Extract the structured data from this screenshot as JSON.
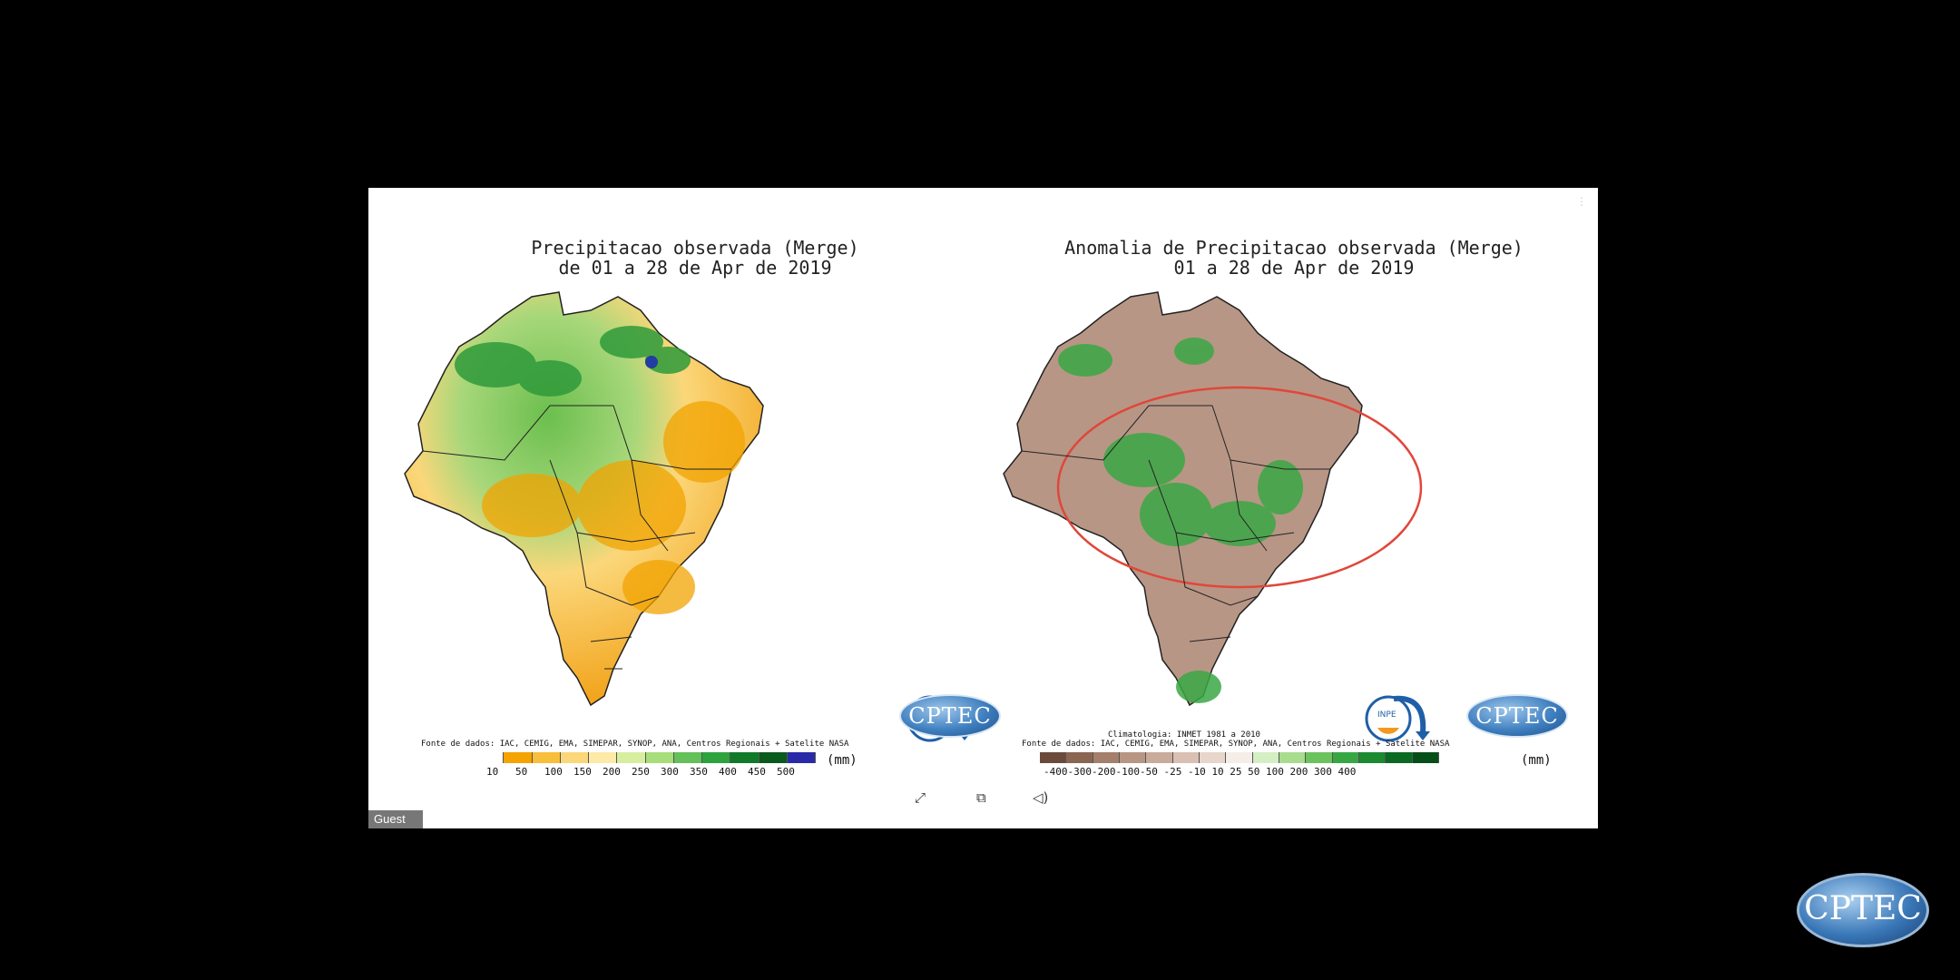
{
  "left_map": {
    "title_line1": "Precipitacao observada (Merge)",
    "title_line2": "de 01 a 28 de Apr de 2019",
    "source": "Fonte de dados: IAC, CEMIG, EMA, SIMEPAR, SYNOP, ANA, Centros Regionais + Satelite NASA",
    "legend_ticks": [
      "10",
      "50",
      "100",
      "150",
      "200",
      "250",
      "300",
      "350",
      "400",
      "450",
      "500"
    ],
    "legend_colors": [
      "#ffffff",
      "#f4a300",
      "#f8bf3a",
      "#fbd77a",
      "#fde9a8",
      "#d7eea0",
      "#a7dd7a",
      "#63c05a",
      "#2ea23d",
      "#107a2a",
      "#0a5a1e",
      "#2a2aa8"
    ],
    "unit": "(mm)"
  },
  "right_map": {
    "title_line1": "Anomalia de Precipitacao observada (Merge)",
    "title_line2": "01 a 28 de Apr de 2019",
    "climatology": "Climatologia: INMET 1981 a 2010",
    "source": "Fonte de dados: IAC, CEMIG, EMA, SIMEPAR, SYNOP, ANA, Centros Regionais + Satelite NASA",
    "legend_ticks": "-400-300-200-100-50 -25 -10 10  25  50 100 200 300 400",
    "legend_colors": [
      "#6b4a3c",
      "#8a6552",
      "#a37f6c",
      "#b89684",
      "#c9ab9b",
      "#d9c0b3",
      "#e8d6cc",
      "#f5ede8",
      "#d4efc4",
      "#a8dc8e",
      "#6cc35e",
      "#38a743",
      "#1b8a30",
      "#0b6a22",
      "#064e18"
    ],
    "unit": "(mm)"
  },
  "logos": {
    "inpe": "INPE",
    "cptec": "CPTEC"
  },
  "controls": {
    "guest_label": "Guest",
    "expand_icon": "expand-icon",
    "fit_icon": "fit-icon",
    "audio_icon": "audio-icon"
  },
  "corner_logo": "CPTEC",
  "colors": {
    "background": "#000000",
    "annotation_circle": "#e0473a"
  }
}
